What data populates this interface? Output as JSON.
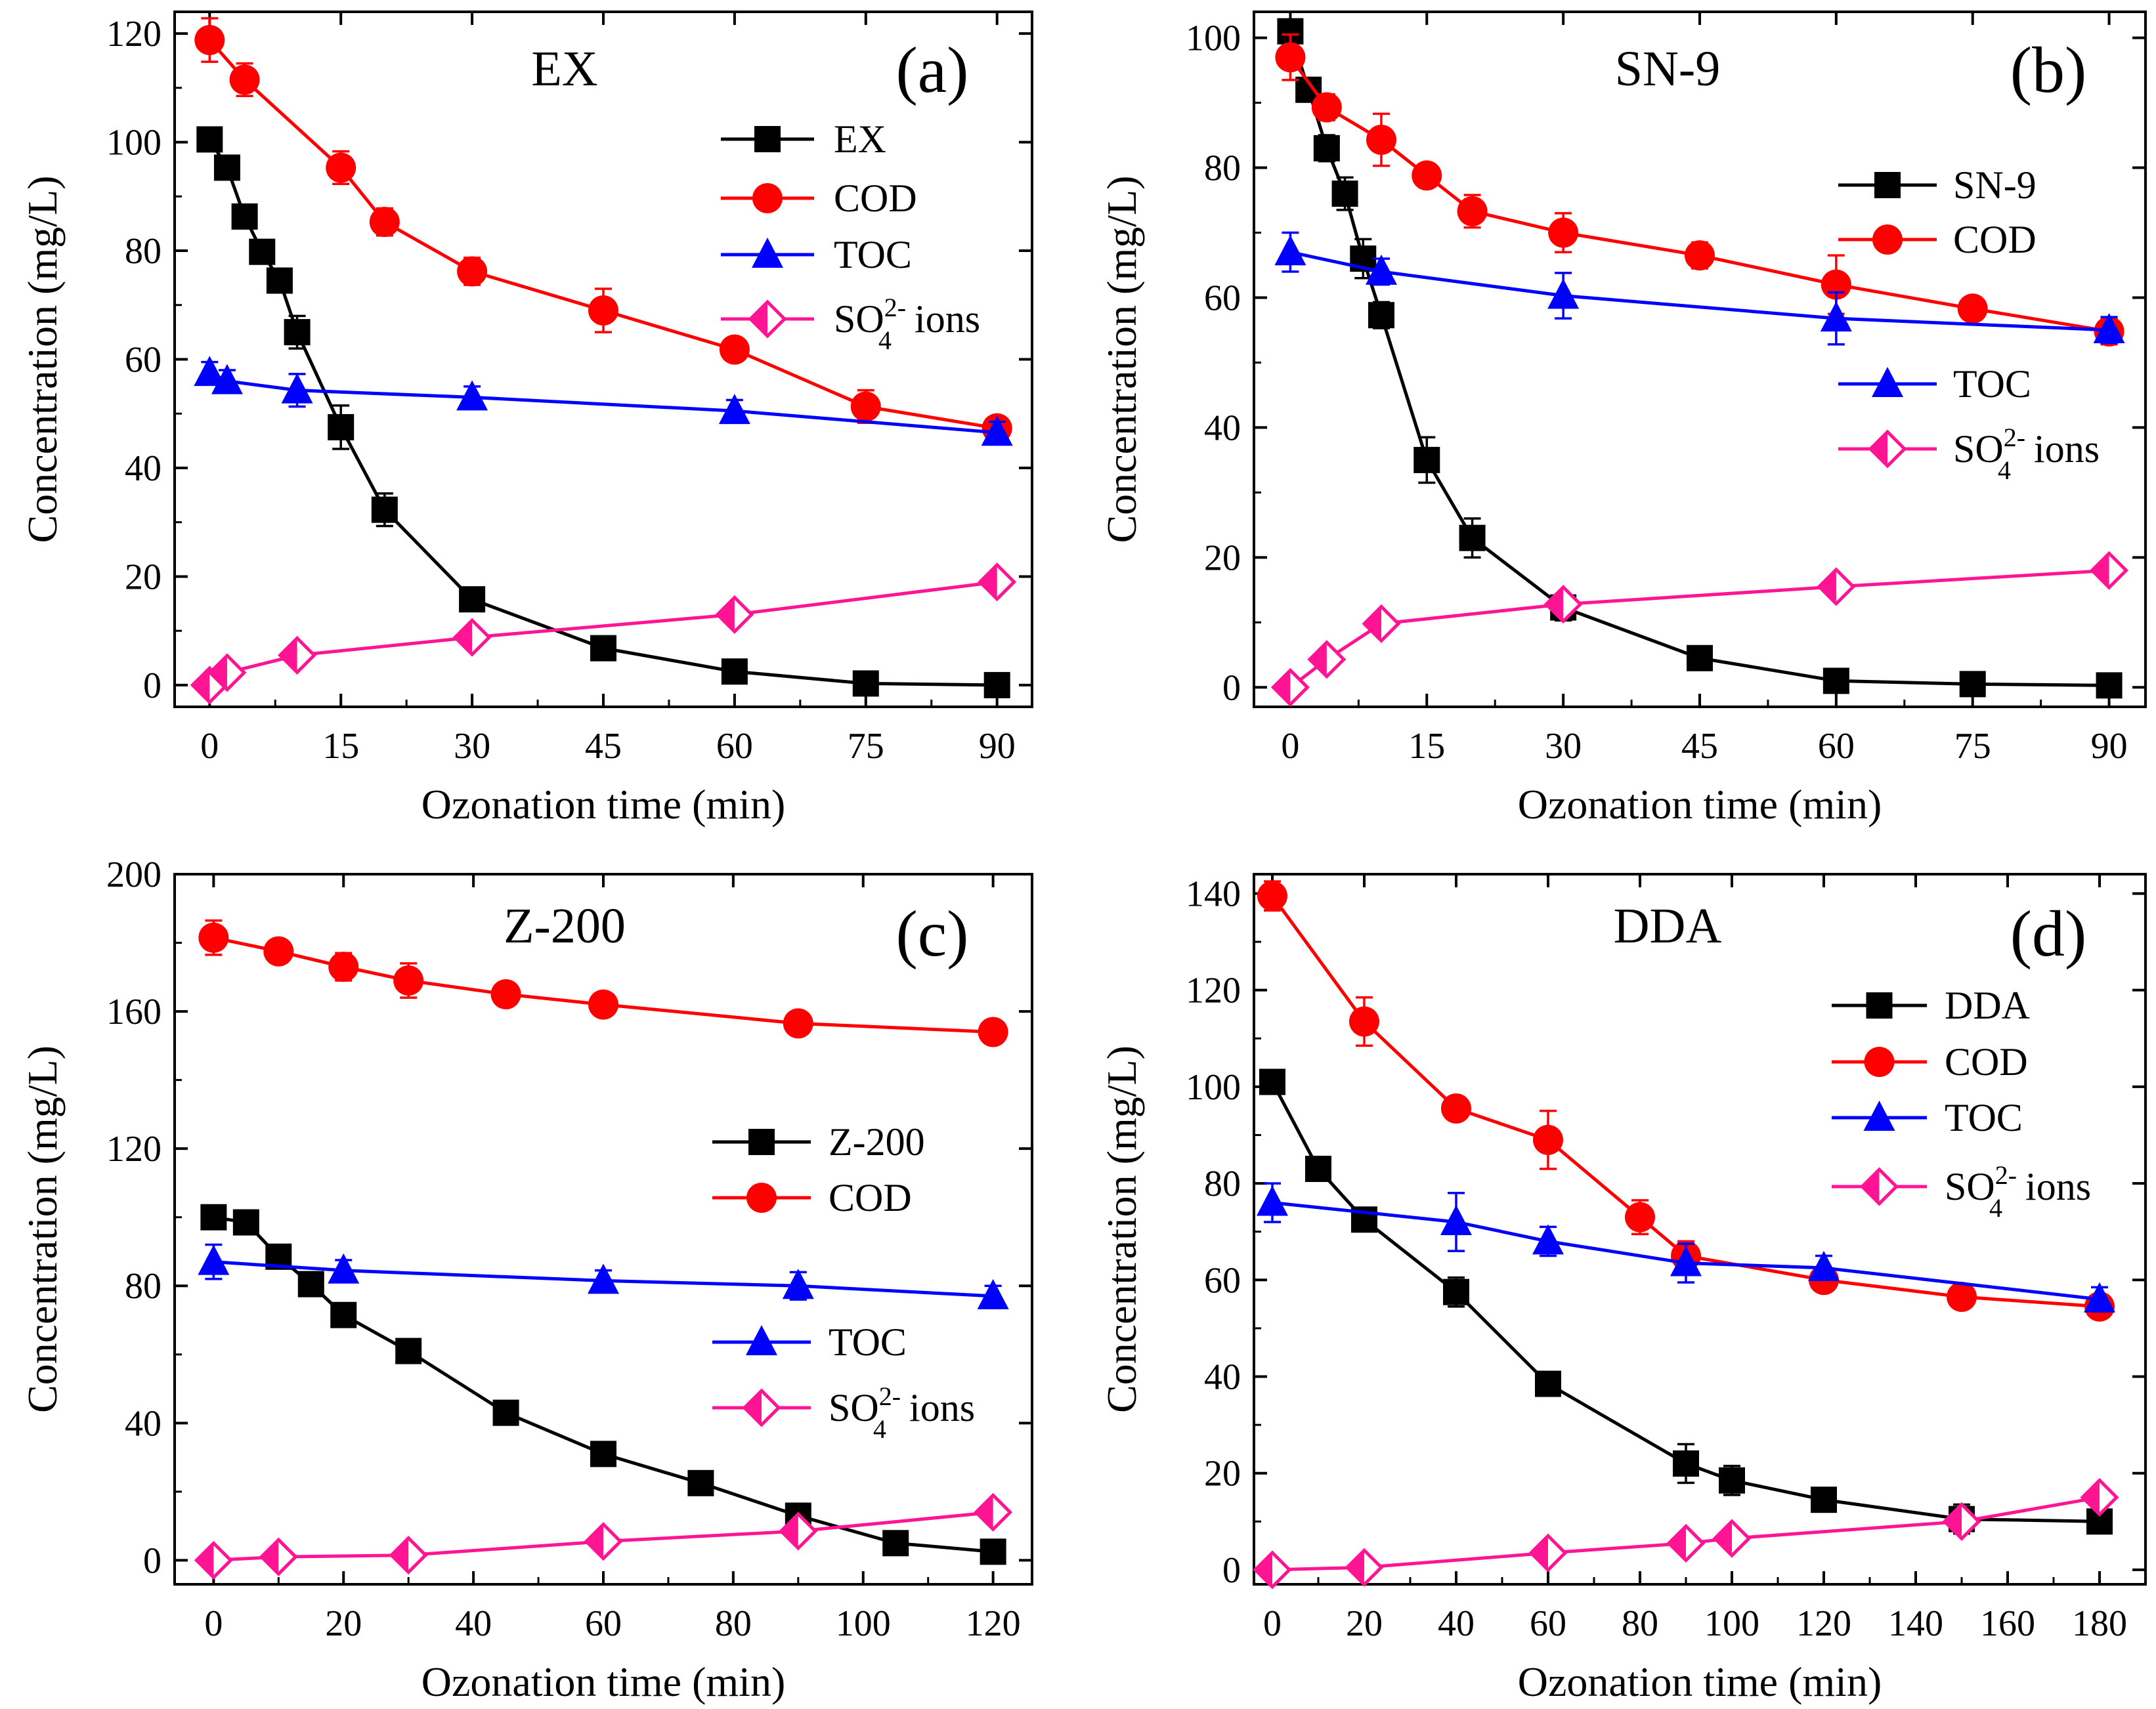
{
  "colors": {
    "black": "#000000",
    "red": "#ff0000",
    "blue": "#0000ff",
    "pink": "#ff1493"
  },
  "chart_data": [
    {
      "type": "line",
      "panel_tag": "(a)",
      "title": "EX",
      "xlabel": "Ozonation time (min)",
      "ylabel": "Concentration (mg/L)",
      "xlim": [
        -4,
        94
      ],
      "ylim": [
        -4,
        124
      ],
      "xticks": [
        0,
        15,
        30,
        45,
        60,
        75,
        90
      ],
      "yticks": [
        0,
        20,
        40,
        60,
        80,
        100,
        120
      ],
      "legend_position": "right",
      "series": [
        {
          "name": "EX",
          "legend_main": "EX",
          "legend_sub": "",
          "legend_tail": "",
          "color": "#000000",
          "marker": "square",
          "x": [
            0,
            2,
            4,
            6,
            8,
            10,
            15,
            20,
            30,
            45,
            60,
            75,
            90
          ],
          "y": [
            100.5,
            95.3,
            86.3,
            79.8,
            74.5,
            65,
            47.5,
            32.3,
            15.8,
            6.8,
            2.5,
            0.3,
            0
          ],
          "err": [
            1.2,
            1.2,
            1.5,
            1.5,
            2,
            3,
            4,
            3,
            2,
            1,
            0.5,
            0,
            0
          ]
        },
        {
          "name": "COD",
          "legend_main": "COD",
          "legend_sub": "",
          "legend_tail": "",
          "color": "#ff0000",
          "marker": "circle",
          "x": [
            0,
            4,
            15,
            20,
            30,
            45,
            60,
            75,
            90
          ],
          "y": [
            118.8,
            111.5,
            95.3,
            85.3,
            76.2,
            69,
            61.8,
            51.3,
            47.3
          ],
          "err": [
            4,
            3,
            3,
            2.5,
            2.5,
            4,
            1.5,
            3,
            2
          ]
        },
        {
          "name": "TOC",
          "legend_main": "TOC",
          "legend_sub": "",
          "legend_tail": "",
          "color": "#0000ff",
          "marker": "triangle",
          "x": [
            0,
            2,
            10,
            30,
            60,
            90
          ],
          "y": [
            57.5,
            56,
            54.3,
            53,
            50.5,
            46.5
          ],
          "err": [
            2,
            2,
            3,
            2,
            2,
            2
          ]
        },
        {
          "name": "SO4 ions",
          "legend_main": "SO",
          "legend_sub": "4",
          "legend_sup": "2-",
          "legend_tail": " ions",
          "color": "#ff1493",
          "marker": "diamond",
          "x": [
            0,
            2,
            10,
            30,
            60,
            90
          ],
          "y": [
            0,
            2.3,
            5.5,
            8.8,
            13,
            19
          ],
          "err": [
            0,
            0,
            0,
            0,
            0,
            0
          ]
        }
      ]
    },
    {
      "type": "line",
      "panel_tag": "(b)",
      "title": "SN-9",
      "xlabel": "Ozonation time (min)",
      "ylabel": "Concentration (mg/L)",
      "xlim": [
        -4,
        94
      ],
      "ylim": [
        -3,
        104
      ],
      "xticks": [
        0,
        15,
        30,
        45,
        60,
        75,
        90
      ],
      "yticks": [
        0,
        20,
        40,
        60,
        80,
        100
      ],
      "legend_position": "right",
      "series": [
        {
          "name": "SN-9",
          "legend_main": "SN-9",
          "legend_sub": "",
          "legend_tail": "",
          "color": "#000000",
          "marker": "square",
          "x": [
            0,
            2,
            4,
            6,
            8,
            10,
            15,
            20,
            30,
            45,
            60,
            75,
            90
          ],
          "y": [
            101,
            92,
            83,
            76,
            66,
            57.3,
            35,
            23,
            12.3,
            4.5,
            1,
            0.5,
            0.3
          ],
          "err": [
            0.5,
            1,
            2,
            2.5,
            3,
            2,
            3.5,
            3,
            2,
            0.5,
            0.5,
            0,
            0
          ]
        },
        {
          "name": "COD",
          "legend_main": "COD",
          "legend_sub": "",
          "legend_tail": "",
          "color": "#ff0000",
          "marker": "circle",
          "x": [
            0,
            4,
            10,
            15,
            20,
            30,
            45,
            60,
            75,
            90
          ],
          "y": [
            97,
            89.3,
            84.3,
            78.8,
            73.3,
            70,
            66.5,
            62,
            58.3,
            54.8
          ],
          "err": [
            3.5,
            2,
            4,
            1,
            2.5,
            3,
            2,
            4.5,
            1.5,
            2
          ]
        },
        {
          "name": "TOC",
          "legend_main": "TOC",
          "legend_sub": "",
          "legend_tail": "",
          "color": "#0000ff",
          "marker": "triangle",
          "x": [
            0,
            10,
            30,
            60,
            90
          ],
          "y": [
            67,
            64,
            60.3,
            56.8,
            55
          ],
          "err": [
            3,
            2,
            3.5,
            4,
            2
          ]
        },
        {
          "name": "SO4 ions",
          "legend_main": "SO",
          "legend_sub": "4",
          "legend_sup": "2-",
          "legend_tail": " ions",
          "color": "#ff1493",
          "marker": "diamond",
          "x": [
            0,
            4,
            10,
            30,
            60,
            90
          ],
          "y": [
            0,
            4.3,
            9.8,
            12.8,
            15.5,
            18
          ],
          "err": [
            0,
            0,
            0,
            0,
            0,
            0
          ]
        }
      ]
    },
    {
      "type": "line",
      "panel_tag": "(c)",
      "title": "Z-200",
      "xlabel": "Ozonation time (min)",
      "ylabel": "Concentration (mg/L)",
      "xlim": [
        -6,
        126
      ],
      "ylim": [
        -7,
        200
      ],
      "xticks": [
        0,
        20,
        40,
        60,
        80,
        100,
        120
      ],
      "yticks": [
        0,
        40,
        80,
        120,
        160,
        200
      ],
      "legend_position": "right",
      "series": [
        {
          "name": "Z-200",
          "legend_main": "Z-200",
          "legend_sub": "",
          "legend_tail": "",
          "color": "#000000",
          "marker": "square",
          "x": [
            0,
            5,
            10,
            15,
            20,
            30,
            45,
            60,
            75,
            90,
            105,
            120
          ],
          "y": [
            100,
            98.5,
            88.5,
            80.5,
            71.5,
            61,
            43,
            31,
            22.5,
            13,
            5,
            2.5
          ],
          "err": [
            0,
            0,
            0,
            0,
            0,
            0,
            0,
            0,
            3,
            0,
            0,
            0
          ]
        },
        {
          "name": "COD",
          "legend_main": "COD",
          "legend_sub": "",
          "legend_tail": "",
          "color": "#ff0000",
          "marker": "circle",
          "x": [
            0,
            10,
            20,
            30,
            45,
            60,
            90,
            120
          ],
          "y": [
            181.5,
            177.5,
            173,
            169,
            165,
            162,
            156.5,
            154
          ],
          "err": [
            5,
            3,
            4,
            5,
            0,
            0,
            0,
            3
          ]
        },
        {
          "name": "TOC",
          "legend_main": "TOC",
          "legend_sub": "",
          "legend_tail": "",
          "color": "#0000ff",
          "marker": "triangle",
          "x": [
            0,
            20,
            60,
            90,
            120
          ],
          "y": [
            87,
            84.5,
            81.5,
            80,
            77
          ],
          "err": [
            5,
            3,
            3,
            4,
            3
          ]
        },
        {
          "name": "SO4 ions",
          "legend_main": "SO",
          "legend_sub": "4",
          "legend_sup": "2-",
          "legend_tail": " ions",
          "color": "#ff1493",
          "marker": "diamond",
          "x": [
            0,
            10,
            30,
            60,
            90,
            120
          ],
          "y": [
            0,
            1,
            1.5,
            5.5,
            8.5,
            14
          ],
          "err": [
            0,
            0,
            0,
            0,
            0,
            0
          ]
        }
      ]
    },
    {
      "type": "line",
      "panel_tag": "(d)",
      "title": "DDA",
      "xlabel": "Ozonation time (min)",
      "ylabel": "Concentration (mg/L)",
      "xlim": [
        -4,
        190
      ],
      "ylim": [
        -3,
        144
      ],
      "xticks": [
        0,
        20,
        40,
        60,
        80,
        100,
        120,
        140,
        160,
        180
      ],
      "yticks": [
        0,
        20,
        40,
        60,
        80,
        100,
        120,
        140
      ],
      "legend_position": "right",
      "series": [
        {
          "name": "DDA",
          "legend_main": "DDA",
          "legend_sub": "",
          "legend_tail": "",
          "color": "#000000",
          "marker": "square",
          "x": [
            0,
            10,
            20,
            40,
            60,
            90,
            100,
            120,
            150,
            180
          ],
          "y": [
            101,
            83,
            72.5,
            57.5,
            38.5,
            22,
            18.5,
            14.5,
            10.5,
            10
          ],
          "err": [
            0,
            0,
            1.5,
            3,
            2,
            4,
            3,
            0,
            3,
            0
          ]
        },
        {
          "name": "COD",
          "legend_main": "COD",
          "legend_sub": "",
          "legend_tail": "",
          "color": "#ff0000",
          "marker": "circle",
          "x": [
            0,
            20,
            40,
            60,
            80,
            90,
            120,
            150,
            180
          ],
          "y": [
            139.5,
            113.5,
            95.5,
            89,
            73,
            65,
            60,
            56.5,
            54.5
          ],
          "err": [
            3,
            5,
            0,
            6,
            3.5,
            3,
            0,
            2,
            2
          ]
        },
        {
          "name": "TOC",
          "legend_main": "TOC",
          "legend_sub": "",
          "legend_tail": "",
          "color": "#0000ff",
          "marker": "triangle",
          "x": [
            0,
            40,
            60,
            90,
            120,
            180
          ],
          "y": [
            76,
            72,
            68,
            63.5,
            62.5,
            56
          ],
          "err": [
            4,
            6,
            3,
            4,
            2.5,
            2.5
          ]
        },
        {
          "name": "SO4 ions",
          "legend_main": "SO",
          "legend_sub": "4",
          "legend_sup": "2-",
          "legend_tail": " ions",
          "color": "#ff1493",
          "marker": "diamond",
          "x": [
            0,
            20,
            60,
            90,
            100,
            150,
            180
          ],
          "y": [
            0,
            0.5,
            3.5,
            5.5,
            6.5,
            10,
            15
          ],
          "err": [
            0,
            0,
            0,
            0,
            0,
            0,
            0
          ]
        }
      ]
    }
  ]
}
